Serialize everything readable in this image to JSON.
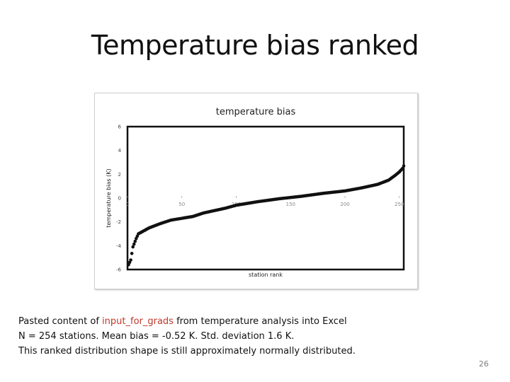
{
  "slide": {
    "title": "Temperature bias ranked",
    "caption": {
      "line1_prefix": "Pasted content of ",
      "line1_code": "input_for_grads",
      "line1_suffix": " from temperature analysis into Excel",
      "line2": "N = 254 stations.  Mean bias = -0.52 K.  Std. deviation 1.6 K.",
      "line3": "This ranked distribution shape is still approximately normally distributed."
    },
    "page_number": "26"
  },
  "chart_data": {
    "type": "scatter",
    "title": "temperature bias",
    "xlabel": "station rank",
    "ylabel": "temperature bias (K)",
    "xlim": [
      0,
      254
    ],
    "ylim": [
      -6,
      6
    ],
    "x_ticks": [
      0,
      50,
      100,
      150,
      200,
      250
    ],
    "y_ticks": [
      6,
      4,
      2,
      0,
      -2,
      -4,
      -6
    ],
    "grid": false,
    "legend": "none",
    "marker_color": "#111111",
    "series": [
      {
        "anchors": [
          [
            1,
            -5.6
          ],
          [
            3,
            -5.2
          ],
          [
            5,
            -4.1
          ],
          [
            8,
            -3.4
          ],
          [
            10,
            -3.0
          ],
          [
            15,
            -2.75
          ],
          [
            20,
            -2.5
          ],
          [
            30,
            -2.15
          ],
          [
            40,
            -1.85
          ],
          [
            50,
            -1.7
          ],
          [
            60,
            -1.55
          ],
          [
            70,
            -1.25
          ],
          [
            80,
            -1.05
          ],
          [
            90,
            -0.85
          ],
          [
            100,
            -0.6
          ],
          [
            120,
            -0.3
          ],
          [
            140,
            -0.05
          ],
          [
            160,
            0.15
          ],
          [
            180,
            0.4
          ],
          [
            200,
            0.6
          ],
          [
            215,
            0.85
          ],
          [
            230,
            1.15
          ],
          [
            240,
            1.5
          ],
          [
            246,
            1.9
          ],
          [
            250,
            2.2
          ],
          [
            253,
            2.5
          ],
          [
            254,
            2.7
          ]
        ]
      }
    ]
  }
}
